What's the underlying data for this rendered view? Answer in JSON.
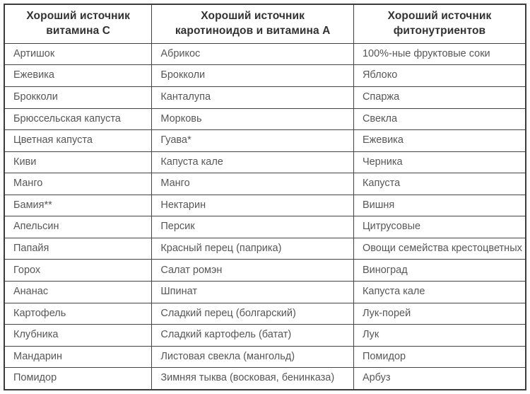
{
  "table": {
    "columns": [
      {
        "label": "Хороший источник\nвитамина С"
      },
      {
        "label": "Хороший источник\nкаротиноидов и витамина А"
      },
      {
        "label": "Хороший источник\nфитонутриентов"
      }
    ],
    "rows": [
      [
        "Артишок",
        "Абрикос",
        "100%-ные фруктовые соки"
      ],
      [
        "Ежевика",
        "Брокколи",
        "Яблоко"
      ],
      [
        "Брокколи",
        "Канталупа",
        "Спаржа"
      ],
      [
        "Брюссельская капуста",
        "Морковь",
        "Свекла"
      ],
      [
        "Цветная капуста",
        "Гуава*",
        "Ежевика"
      ],
      [
        "Киви",
        "Капуста кале",
        "Черника"
      ],
      [
        "Манго",
        "Манго",
        "Капуста"
      ],
      [
        "Бамия**",
        "Нектарин",
        "Вишня"
      ],
      [
        "Апельсин",
        "Персик",
        "Цитрусовые"
      ],
      [
        "Папайя",
        "Красный перец (паприка)",
        "Овощи семейства крестоцветных"
      ],
      [
        "Горох",
        "Салат ромэн",
        "Виноград"
      ],
      [
        "Ананас",
        "Шпинат",
        "Капуста кале"
      ],
      [
        "Картофель",
        "Сладкий перец (болгарский)",
        "Лук-порей"
      ],
      [
        "Клубника",
        "Сладкий картофель (батат)",
        "Лук"
      ],
      [
        "Мандарин",
        "Листовая свекла (мангольд)",
        "Помидор"
      ],
      [
        "Помидор",
        "Зимняя тыква (восковая, бенинказа)",
        "Арбуз"
      ]
    ]
  },
  "colors": {
    "outer_border": "#3b3b3b",
    "inner_border": "#454545",
    "header_text": "#323232",
    "body_text": "#575757",
    "background": "#ffffff"
  }
}
